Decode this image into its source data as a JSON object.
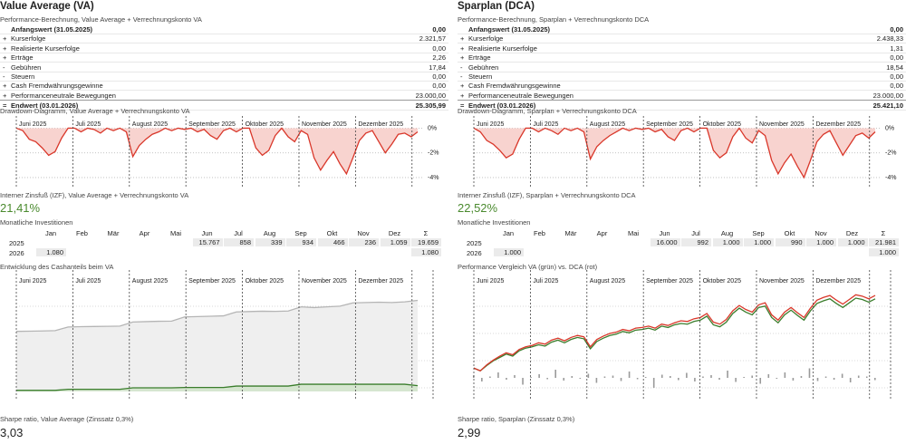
{
  "investments_title": "Monatliche Investitionen",
  "inv_header": [
    "Jan",
    "Feb",
    "Mär",
    "Apr",
    "Mai",
    "Jun",
    "Jul",
    "Aug",
    "Sep",
    "Okt",
    "Nov",
    "Dez",
    "Σ"
  ],
  "panels": [
    {
      "title": "Value Average (VA)",
      "perf_title": "Performance-Berechnung, Value Average + Verrechnungskonto VA",
      "rows": [
        {
          "label": "Anfangswert (31.05.2025)",
          "value": "0,00"
        },
        {
          "sign": "+",
          "label": "Kurserfolge",
          "value": "2.321,57"
        },
        {
          "sign": "+",
          "label": "Realisierte Kurserfolge",
          "value": "0,00"
        },
        {
          "sign": "+",
          "label": "Erträge",
          "value": "2,26"
        },
        {
          "sign": "-",
          "label": "Gebühren",
          "value": "17,84"
        },
        {
          "sign": "-",
          "label": "Steuern",
          "value": "0,00"
        },
        {
          "sign": "+",
          "label": "Cash Fremdwährungsgewinne",
          "value": "0,00"
        },
        {
          "sign": "+",
          "label": "Performanceneutrale Bewegungen",
          "value": "23.000,00"
        },
        {
          "sign": "=",
          "label": "Endwert (03.01.2026)",
          "value": "25.305,99"
        }
      ],
      "drawdown": {
        "type": "area",
        "title": "Drawdown-Diagramm, Value Average + Verrechnungskonto VA",
        "months": [
          "Juni 2025",
          "Juli 2025",
          "August 2025",
          "September 2025",
          "Oktober 2025",
          "November 2025",
          "Dezember 2025"
        ],
        "color": "#d9372a",
        "fill": "#f8d3cf",
        "values": [
          0,
          -0.2,
          -0.9,
          -1.1,
          -1.6,
          -2.2,
          -1.9,
          -0.8,
          0,
          0,
          -0.3,
          0,
          -0.1,
          -0.4,
          0,
          -0.2,
          0,
          -0.3,
          -2.3,
          -1.4,
          -0.9,
          -0.5,
          -0.3,
          0,
          -0.2,
          0,
          -0.1,
          0,
          -0.3,
          -0.1,
          -0.6,
          -0.9,
          -0.2,
          0,
          -0.3,
          0,
          0,
          -1.6,
          -2.2,
          -1.8,
          -0.6,
          0,
          -0.7,
          -1.1,
          -0.2,
          -0.5,
          -2.4,
          -3.4,
          -2.6,
          -1.9,
          -2.9,
          -3.7,
          -2.4,
          -1.0,
          -0.4,
          -0.2,
          -1.1,
          -2.0,
          -1.3,
          -0.5,
          -0.4,
          -0.7,
          -0.3
        ],
        "ylim": [
          -4.3,
          0.4
        ],
        "yticks": [
          {
            "value": 0,
            "label": "0%"
          },
          {
            "value": -2,
            "label": "-2%"
          },
          {
            "value": -4,
            "label": "-4%"
          }
        ]
      },
      "irr_title": "Interner Zinsfuß (IZF), Value Average + Verrechnungskonto VA",
      "irr": "21,41%",
      "inv_rows": [
        {
          "year": "2025",
          "cells": [
            null,
            null,
            null,
            null,
            null,
            "15.767",
            "858",
            "339",
            "934",
            "466",
            "236",
            "1.059",
            "19.659"
          ]
        },
        {
          "year": "2026",
          "cells": [
            "1.080",
            null,
            null,
            null,
            null,
            null,
            null,
            null,
            null,
            null,
            null,
            null,
            "1.080"
          ]
        }
      ],
      "chart2": {
        "type": "cash",
        "title": "Entwicklung des Cashanteils beim VA",
        "ylim": [
          0,
          28700
        ],
        "series": [
          {
            "color": "#b5b5b5",
            "fill": "#efefef",
            "values": [
              16700,
              16750,
              16800,
              16900,
              17900,
              18000,
              18050,
              18100,
              18150,
              19300,
              19400,
              19500,
              19550,
              20700,
              20800,
              20900,
              21000,
              22100,
              22200,
              22300,
              22250,
              22350,
              23500,
              23300,
              23500,
              23700,
              24600,
              24700,
              24800,
              24700,
              24900,
              25300
            ]
          },
          {
            "color": "#3a7d2c",
            "fill": "#d6e6d0",
            "values": [
              300,
              300,
              300,
              300,
              600,
              600,
              600,
              600,
              600,
              1000,
              1000,
              1000,
              1000,
              1100,
              1100,
              1100,
              1100,
              1500,
              1500,
              1500,
              1500,
              1500,
              2000,
              2000,
              2000,
              2000,
              2000,
              2000,
              2000,
              2000,
              2000,
              1600
            ]
          }
        ]
      },
      "sharpe_title": "Sharpe ratio, Value Average (Zinssatz 0,3%)",
      "sharpe": "3,03"
    },
    {
      "title": "Sparplan (DCA)",
      "perf_title": "Performance-Berechnung, Sparplan + Verrechnungskonto DCA",
      "rows": [
        {
          "label": "Anfangswert (31.05.2025)",
          "value": "0,00"
        },
        {
          "sign": "+",
          "label": "Kurserfolge",
          "value": "2.438,33"
        },
        {
          "sign": "+",
          "label": "Realisierte Kurserfolge",
          "value": "1,31"
        },
        {
          "sign": "+",
          "label": "Erträge",
          "value": "0,00"
        },
        {
          "sign": "-",
          "label": "Gebühren",
          "value": "18,54"
        },
        {
          "sign": "-",
          "label": "Steuern",
          "value": "0,00"
        },
        {
          "sign": "+",
          "label": "Cash Fremdwährungsgewinne",
          "value": "0,00"
        },
        {
          "sign": "+",
          "label": "Performanceneutrale Bewegungen",
          "value": "23.000,00"
        },
        {
          "sign": "=",
          "label": "Endwert (03.01.2026)",
          "value": "25.421,10"
        }
      ],
      "drawdown": {
        "type": "area",
        "title": "Drawdown-Diagramm, Sparplan + Verrechnungskonto DCA",
        "months": [
          "Juni 2025",
          "Juli 2025",
          "August 2025",
          "September 2025",
          "Oktober 2025",
          "November 2025",
          "Dezember 2025"
        ],
        "color": "#d9372a",
        "fill": "#f8d3cf",
        "values": [
          0,
          -0.3,
          -1.0,
          -1.3,
          -1.8,
          -2.4,
          -2.1,
          -0.9,
          0,
          0,
          -0.3,
          0,
          -0.2,
          -0.5,
          0,
          -0.2,
          0,
          -0.3,
          -2.5,
          -1.5,
          -1.0,
          -0.6,
          -0.3,
          0,
          -0.2,
          0,
          -0.1,
          0,
          -0.3,
          -0.1,
          -0.7,
          -1.0,
          -0.2,
          0,
          -0.3,
          0,
          0,
          -1.8,
          -2.4,
          -2.0,
          -0.7,
          0,
          -0.8,
          -1.2,
          -0.2,
          -0.6,
          -2.6,
          -3.7,
          -2.8,
          -2.1,
          -3.1,
          -4.0,
          -2.6,
          -1.1,
          -0.5,
          -0.2,
          -1.2,
          -2.2,
          -1.4,
          -0.6,
          -0.4,
          -0.8,
          -0.3
        ],
        "ylim": [
          -4.3,
          0.4
        ],
        "yticks": [
          {
            "value": 0,
            "label": "0%"
          },
          {
            "value": -2,
            "label": "-2%"
          },
          {
            "value": -4,
            "label": "-4%"
          }
        ]
      },
      "irr_title": "Interner Zinsfuß (IZF), Sparplan + Verrechnungskonto DCA",
      "irr": "22,52%",
      "inv_rows": [
        {
          "year": "2025",
          "cells": [
            null,
            null,
            null,
            null,
            null,
            "16.000",
            "992",
            "1.000",
            "1.000",
            "990",
            "1.000",
            "1.000",
            "21.981"
          ]
        },
        {
          "year": "2026",
          "cells": [
            "1.000",
            null,
            null,
            null,
            null,
            null,
            null,
            null,
            null,
            null,
            null,
            null,
            "1.000"
          ]
        }
      ],
      "chart2": {
        "type": "perf",
        "title": "Performance Vergleich VA (grün) vs. DCA (rot)",
        "ylim": [
          -3.5,
          12
        ],
        "y2lim": [
          -3,
          3
        ],
        "series": [
          {
            "color": "#3a7d2c",
            "values": [
              0,
              -0.4,
              0.4,
              1.1,
              1.6,
              2.1,
              1.8,
              2.6,
              3.0,
              3.2,
              3.5,
              3.3,
              3.9,
              4.2,
              3.8,
              4.3,
              4.6,
              4.4,
              2.9,
              4.0,
              4.5,
              4.9,
              5.1,
              5.5,
              5.3,
              5.7,
              5.8,
              6.0,
              5.7,
              6.3,
              6.1,
              6.5,
              6.7,
              6.6,
              7.0,
              7.2,
              7.8,
              6.5,
              6.2,
              6.9,
              8.2,
              9.0,
              8.4,
              8.0,
              9.1,
              9.3,
              7.6,
              6.8,
              8.0,
              8.7,
              7.9,
              7.2,
              8.6,
              9.7,
              10.1,
              10.4,
              9.7,
              9.1,
              9.8,
              10.5,
              10.3,
              9.9,
              10.4
            ]
          },
          {
            "color": "#d9372a",
            "values": [
              0,
              -0.4,
              0.5,
              1.2,
              1.8,
              2.3,
              2.0,
              2.8,
              3.2,
              3.4,
              3.8,
              3.6,
              4.2,
              4.5,
              4.1,
              4.6,
              4.9,
              4.7,
              3.2,
              4.3,
              4.8,
              5.2,
              5.4,
              5.8,
              5.6,
              6.0,
              6.1,
              6.3,
              6.0,
              6.6,
              6.4,
              6.8,
              7.1,
              7.0,
              7.4,
              7.6,
              8.2,
              6.9,
              6.6,
              7.3,
              8.6,
              9.4,
              8.8,
              8.4,
              9.5,
              9.8,
              8.0,
              7.2,
              8.4,
              9.1,
              8.3,
              7.6,
              9.0,
              10.2,
              10.6,
              10.9,
              10.2,
              9.6,
              10.3,
              11.0,
              10.8,
              10.4,
              10.9
            ]
          },
          {
            "type": "bar",
            "axis": "y2",
            "color": "#9a9a9a",
            "values": [
              0.5,
              -0.8,
              0.3,
              1.2,
              -0.4,
              0.6,
              -1.5,
              0.2,
              0.8,
              -0.3,
              1.8,
              -0.6,
              0.4,
              -0.2,
              0.9,
              -1.1,
              0.3,
              0.5,
              -0.7,
              1.4,
              -0.3,
              0.2,
              -2.2,
              0.7,
              0.4,
              -0.5,
              1.1,
              -0.8,
              0.3,
              0.6,
              -0.4,
              1.6,
              -0.9,
              0.2,
              0.5,
              -1.3,
              0.8,
              -0.2,
              1.2,
              -0.6,
              0.4,
              2.1,
              -0.7,
              0.3,
              -0.4,
              0.9,
              -1.0,
              0.5,
              0.3,
              -0.5
            ]
          }
        ]
      },
      "sharpe_title": "Sharpe ratio, Sparplan (Zinssatz 0,3%)",
      "sharpe": "2,99"
    }
  ]
}
